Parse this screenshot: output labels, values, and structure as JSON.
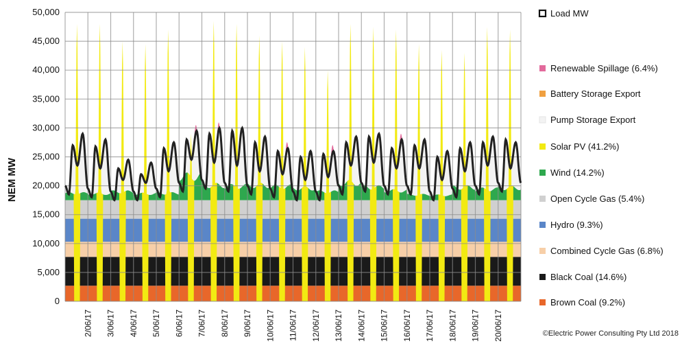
{
  "chart_data": {
    "type": "area",
    "ylabel": "NEM MW",
    "ylim": [
      0,
      50000
    ],
    "yticks": [
      0,
      5000,
      10000,
      15000,
      20000,
      25000,
      30000,
      35000,
      40000,
      45000,
      50000
    ],
    "ytick_labels": [
      "0",
      "5,000",
      "10,000",
      "15,000",
      "20,000",
      "25,000",
      "30,000",
      "35,000",
      "40,000",
      "45,000",
      "50,000"
    ],
    "x_start": "1/06/17",
    "x_end": "21/06/17",
    "x_tick_labels": [
      "2/06/17",
      "3/06/17",
      "4/06/17",
      "5/06/17",
      "6/06/17",
      "7/06/17",
      "8/06/17",
      "9/06/17",
      "10/06/17",
      "11/06/17",
      "12/06/17",
      "13/06/17",
      "14/06/17",
      "15/06/17",
      "16/06/17",
      "17/06/17",
      "18/06/17",
      "19/06/17",
      "20/06/17"
    ],
    "grid": true,
    "legend_position": "right",
    "series": [
      {
        "name": "Brown Coal (9.2%)",
        "color": "#e8672a",
        "baseline_mw": 2700
      },
      {
        "name": "Black Coal (14.6%)",
        "color": "#1a1a1a",
        "baseline_mw": 5000
      },
      {
        "name": "Combined Cycle Gas (6.8%)",
        "color": "#f7cfa8",
        "baseline_mw": 2600
      },
      {
        "name": "Hydro (9.3%)",
        "color": "#5a86c8",
        "baseline_mw": 4000
      },
      {
        "name": "Open Cycle Gas (5.4%)",
        "color": "#d0d0d0",
        "baseline_mw": 3200
      },
      {
        "name": "Wind (14.2%)",
        "color": "#2ea84e",
        "daily_mw": [
          1400,
          1300,
          1700,
          1300,
          1400,
          4800,
          3000,
          2800,
          3000,
          2700,
          2400,
          1700,
          3500,
          2600,
          1900,
          1100,
          1000,
          2600,
          2200,
          2500
        ]
      },
      {
        "name": "Solar PV (41.2%)",
        "color": "#f2ea12",
        "daily_peak_mw": [
          48000,
          48000,
          45000,
          44500,
          47000,
          29000,
          48500,
          48000,
          46000,
          45000,
          44000,
          40000,
          48000,
          47500,
          47000,
          44500,
          43500,
          43000,
          47500,
          47000
        ]
      },
      {
        "name": "Pump Storage Export",
        "color": "#f3f3f3"
      },
      {
        "name": "Battery Storage Export",
        "color": "#f0a040"
      },
      {
        "name": "Renewable Spillage (6.4%)",
        "color": "#e26a9c",
        "days_present": [
          5,
          6,
          9,
          11,
          14,
          20
        ]
      },
      {
        "name": "Load MW",
        "type": "line",
        "color": "#222222",
        "daily_morning_peak_mw": [
          27000,
          26800,
          23000,
          22000,
          26500,
          28000,
          29000,
          29500,
          27500,
          26000,
          25000,
          25500,
          27500,
          28500,
          26500,
          27000,
          25000,
          26500,
          27500,
          28000
        ],
        "daily_evening_peak_mw": [
          29000,
          28000,
          24500,
          24000,
          27500,
          29500,
          30000,
          30000,
          28500,
          26500,
          26000,
          26000,
          28500,
          29000,
          28000,
          28000,
          26000,
          27500,
          28500,
          27500
        ],
        "daily_midday_low_mw": [
          23500,
          23000,
          21000,
          20500,
          22500,
          24500,
          24000,
          23500,
          22500,
          22000,
          21000,
          21500,
          23500,
          24000,
          23000,
          23000,
          21000,
          22500,
          23500,
          23000
        ],
        "daily_overnight_low_mw": [
          18500,
          18000,
          17500,
          17500,
          18000,
          19000,
          19500,
          19000,
          18500,
          18000,
          17500,
          17500,
          18500,
          19000,
          18500,
          18500,
          17500,
          18000,
          18500,
          19000
        ]
      }
    ],
    "legend_order": [
      "Load MW",
      "Renewable Spillage (6.4%)",
      "Battery Storage Export",
      "Pump Storage Export",
      "Solar PV (41.2%)",
      "Wind (14.2%)",
      "Open Cycle Gas (5.4%)",
      "Hydro (9.3%)",
      "Combined Cycle Gas (6.8%)",
      "Black Coal (14.6%)",
      "Brown Coal (9.2%)"
    ],
    "credit": "©Electric Power Consulting Pty Ltd 2018"
  }
}
